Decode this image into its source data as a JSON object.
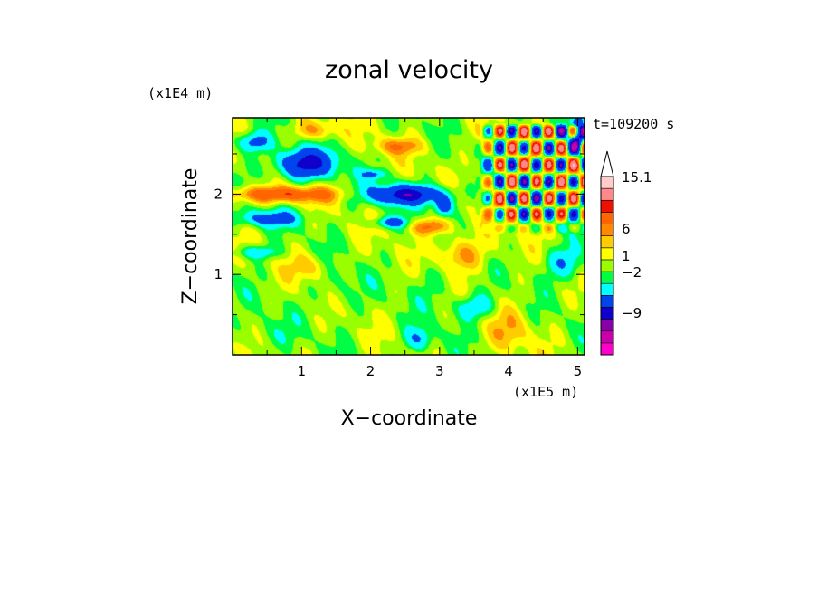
{
  "chart_data": {
    "type": "heatmap",
    "title": "zonal velocity",
    "xlabel": "X−coordinate",
    "ylabel": "Z−coordinate",
    "x_unit": "(x1E5 m)",
    "y_unit": "(x1E4 m)",
    "time_label": "t=109200 s",
    "xlim": [
      0.0,
      5.1
    ],
    "ylim": [
      0.0,
      2.95
    ],
    "xticks": [
      1,
      2,
      3,
      4,
      5
    ],
    "yticks": [
      1,
      2
    ],
    "colorbar": {
      "labels": [
        {
          "value": 15.1,
          "text": "15.1"
        },
        {
          "value": 6,
          "text": "6"
        },
        {
          "value": 1,
          "text": "1"
        },
        {
          "value": -2,
          "text": "−2"
        },
        {
          "value": -9,
          "text": "−9"
        }
      ],
      "colors": [
        "#ff00cc",
        "#cc00aa",
        "#8800aa",
        "#1100cc",
        "#0044ee",
        "#00ffff",
        "#00ff44",
        "#99ff00",
        "#ffff00",
        "#ffcc00",
        "#ff8800",
        "#ff6600",
        "#ee1100",
        "#ff8888",
        "#ffcccc"
      ],
      "extend_top": true
    },
    "blobs": [
      {
        "x": 1.05,
        "z": 2.38,
        "rx": 0.42,
        "rz": 0.18,
        "v": -7
      },
      {
        "x": 0.3,
        "z": 2.65,
        "rx": 0.25,
        "rz": 0.12,
        "v": -4
      },
      {
        "x": 0.5,
        "z": 1.7,
        "rx": 0.45,
        "rz": 0.1,
        "v": -4
      },
      {
        "x": 0.35,
        "z": 1.28,
        "rx": 0.3,
        "rz": 0.08,
        "v": -3
      },
      {
        "x": 2.5,
        "z": 2.0,
        "rx": 0.6,
        "rz": 0.12,
        "v": -7
      },
      {
        "x": 2.3,
        "z": 1.65,
        "rx": 0.25,
        "rz": 0.07,
        "v": -4
      },
      {
        "x": 2.05,
        "z": 2.25,
        "rx": 0.2,
        "rz": 0.06,
        "v": -3
      },
      {
        "x": 3.05,
        "z": 1.85,
        "rx": 0.13,
        "rz": 0.12,
        "v": -5
      },
      {
        "x": 3.5,
        "z": 0.6,
        "rx": 0.3,
        "rz": 0.15,
        "v": -3
      },
      {
        "x": 4.8,
        "z": 1.15,
        "rx": 0.3,
        "rz": 0.2,
        "v": -3
      },
      {
        "x": 5.0,
        "z": 2.75,
        "rx": 0.1,
        "rz": 0.2,
        "v": -7
      },
      {
        "x": 0.7,
        "z": 2.0,
        "rx": 0.9,
        "rz": 0.1,
        "v": 5
      },
      {
        "x": 1.2,
        "z": 2.8,
        "rx": 0.3,
        "rz": 0.12,
        "v": 3
      },
      {
        "x": 2.85,
        "z": 1.6,
        "rx": 0.3,
        "rz": 0.1,
        "v": 4
      },
      {
        "x": 2.4,
        "z": 2.6,
        "rx": 0.35,
        "rz": 0.1,
        "v": 3
      },
      {
        "x": 3.3,
        "z": 1.25,
        "rx": 0.35,
        "rz": 0.2,
        "v": 3
      },
      {
        "x": 1.1,
        "z": 1.1,
        "rx": 0.3,
        "rz": 0.15,
        "v": 2
      },
      {
        "x": 2.7,
        "z": 0.2,
        "rx": 0.2,
        "rz": 0.15,
        "v": -3
      },
      {
        "x": 0.5,
        "z": 0.25,
        "rx": 0.35,
        "rz": 0.2,
        "v": -1
      },
      {
        "x": 1.5,
        "z": 0.8,
        "rx": 0.3,
        "rz": 0.3,
        "v": -1
      },
      {
        "x": 4.0,
        "z": 0.3,
        "rx": 0.3,
        "rz": 0.3,
        "v": 2
      },
      {
        "x": 2.9,
        "z": 0.9,
        "rx": 0.3,
        "rz": 0.25,
        "v": -1
      },
      {
        "x": 4.2,
        "z": 2.05,
        "rx": 0.9,
        "rz": 0.6,
        "v": 0.5
      }
    ],
    "wave_field": {
      "x0": 3.5,
      "x1": 5.1,
      "z0": 1.5,
      "z1": 2.9,
      "amp": 9
    }
  }
}
